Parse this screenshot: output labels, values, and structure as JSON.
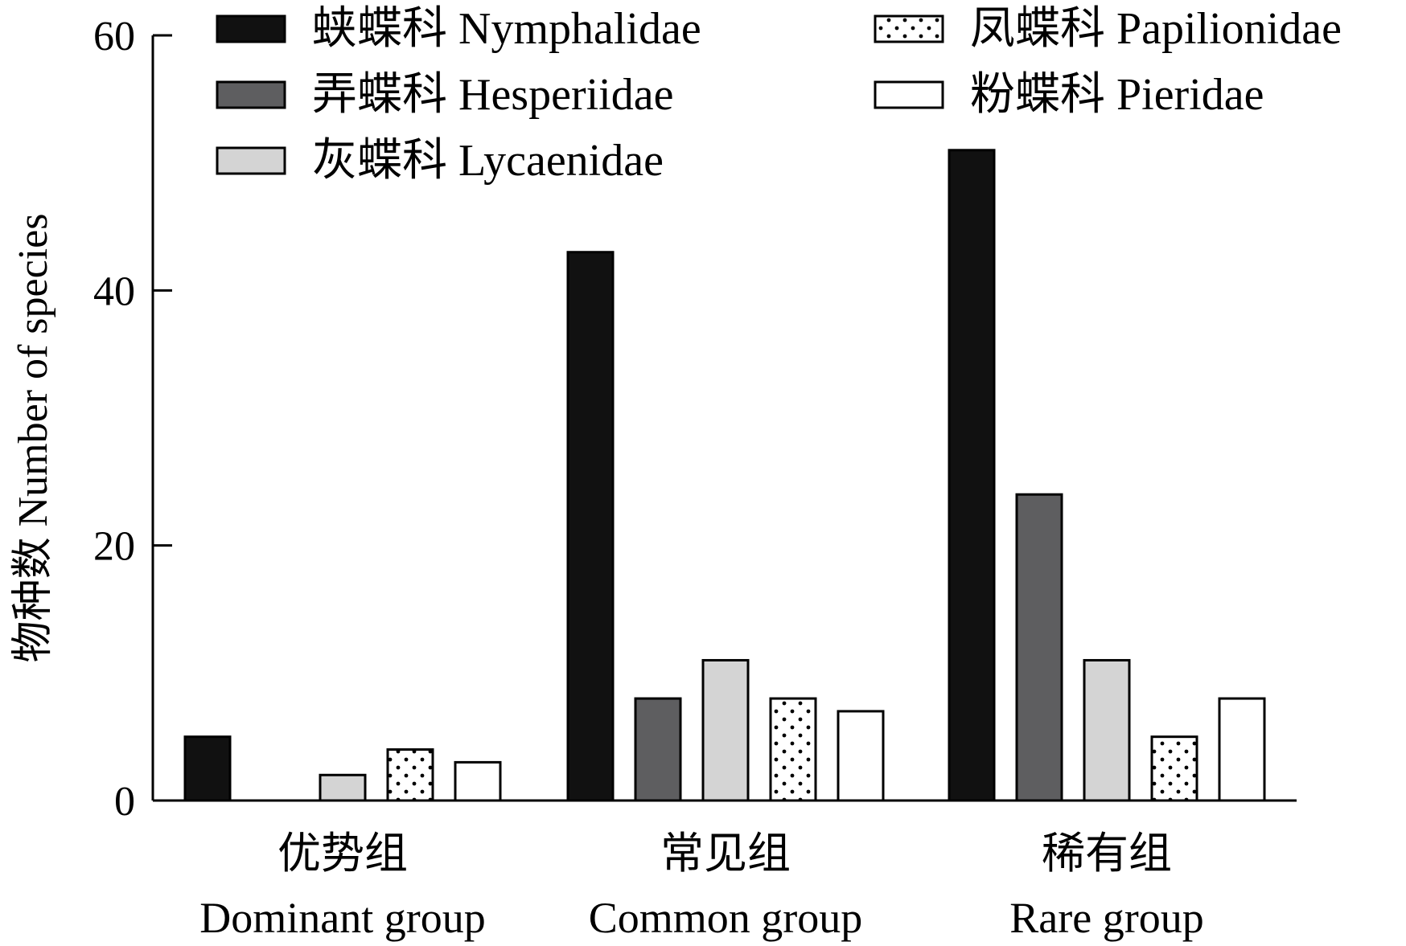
{
  "chart_data": {
    "type": "bar",
    "title": "",
    "ylabel": "物种数 Number of species",
    "xlabel": "",
    "ylim": [
      0,
      60
    ],
    "yticks": [
      0,
      20,
      40,
      60
    ],
    "grid": false,
    "legend_position": "top",
    "categories": [
      {
        "zh": "优势组",
        "en": "Dominant group"
      },
      {
        "zh": "常见组",
        "en": "Common group"
      },
      {
        "zh": "稀有组",
        "en": "Rare group"
      }
    ],
    "series": [
      {
        "name": "蛱蝶科 Nymphalidae",
        "fill": "#111111",
        "pattern": "solid",
        "values": [
          5,
          43,
          51
        ]
      },
      {
        "name": "弄蝶科 Hesperiidae",
        "fill": "#5e5e60",
        "pattern": "solid",
        "values": [
          0,
          8,
          24
        ]
      },
      {
        "name": "灰蝶科 Lycaenidae",
        "fill": "#d4d4d4",
        "pattern": "solid",
        "values": [
          2,
          11,
          11
        ]
      },
      {
        "name": "凤蝶科 Papilionidae",
        "fill": "#ffffff",
        "pattern": "dots",
        "values": [
          4,
          8,
          5
        ]
      },
      {
        "name": "粉蝶科 Pieridae",
        "fill": "#ffffff",
        "pattern": "solid",
        "values": [
          3,
          7,
          8
        ]
      }
    ],
    "legend_order": [
      0,
      3,
      1,
      4,
      2
    ]
  }
}
